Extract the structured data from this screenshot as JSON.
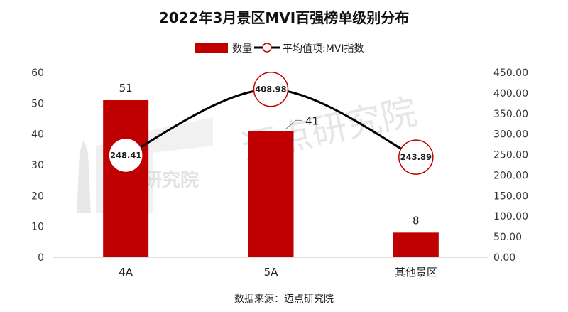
{
  "chart_data": {
    "type": "bar+line",
    "title": "2022年3月景区MVI百强榜单级别分布",
    "categories": [
      "4A",
      "5A",
      "其他景区"
    ],
    "series": [
      {
        "name": "数量",
        "type": "bar",
        "axis": "left",
        "values": [
          51,
          41,
          8
        ],
        "labels": [
          "51",
          "41",
          "8"
        ]
      },
      {
        "name": "平均值项:MVI指数",
        "type": "line",
        "axis": "right",
        "values": [
          248.41,
          408.98,
          243.89
        ],
        "labels": [
          "248.41",
          "408.98",
          "243.89"
        ]
      }
    ],
    "y_left": {
      "min": 0,
      "max": 60,
      "ticks": [
        "0",
        "10",
        "20",
        "30",
        "40",
        "50",
        "60"
      ]
    },
    "y_right": {
      "min": 0,
      "max": 450,
      "ticks": [
        "0.00",
        "50.00",
        "100.00",
        "150.00",
        "200.00",
        "250.00",
        "300.00",
        "350.00",
        "400.00",
        "450.00"
      ]
    },
    "legend": {
      "items": [
        "数量",
        "平均值项:MVI指数"
      ],
      "placement": "top-center"
    },
    "colors": {
      "bar": "#c00000",
      "line": "#000000",
      "marker_edge": "#c00000",
      "marker_fill": "#ffffff",
      "watermark": "#d6d6d6"
    },
    "source": "数据来源：迈点研究院",
    "watermark": [
      "迈点研究院",
      "迈点研究院"
    ]
  }
}
